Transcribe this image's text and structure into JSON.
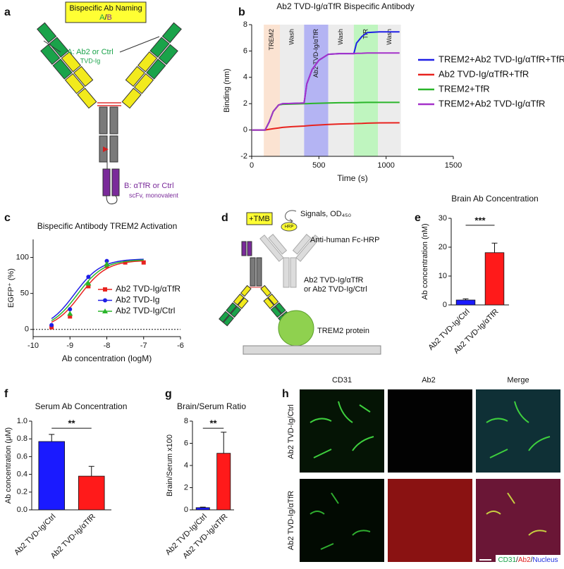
{
  "chart_data": [
    {
      "type": "line",
      "panel": "b",
      "title": "Ab2 TVD-Ig/αTfR Bispecific Antibody",
      "xlabel": "Time (s)",
      "ylabel": "Binding (nm)",
      "xlim": [
        0,
        1500
      ],
      "xticks": [
        0,
        500,
        1000,
        1500
      ],
      "ylim": [
        -2,
        8
      ],
      "yticks": [
        -2,
        0,
        2,
        4,
        6,
        8
      ],
      "phases": [
        {
          "label": "TREM2",
          "start": 90,
          "end": 210,
          "color": "#fbe3d2"
        },
        {
          "label": "Wash",
          "start": 210,
          "end": 390,
          "color": "#ececec"
        },
        {
          "label": "Ab2 TVD-Ig/αTfR",
          "start": 390,
          "end": 570,
          "color": "#b4b4f3"
        },
        {
          "label": "Wash",
          "start": 570,
          "end": 760,
          "color": "#ececec"
        },
        {
          "label": "TfR",
          "start": 760,
          "end": 940,
          "color": "#bff5bf"
        },
        {
          "label": "Wash",
          "start": 940,
          "end": 1110,
          "color": "#ececec"
        }
      ],
      "x": [
        0,
        100,
        130,
        160,
        200,
        230,
        300,
        390,
        410,
        450,
        500,
        570,
        650,
        760,
        780,
        820,
        860,
        950,
        1100
      ],
      "series": [
        {
          "name": "TREM2+Ab2 TVD-Ig/αTfR+TfR",
          "color": "#1f1fe6",
          "values": [
            0,
            0,
            0.6,
            1.4,
            1.9,
            2.0,
            2.02,
            2.05,
            3.5,
            4.6,
            5.3,
            5.75,
            5.8,
            5.8,
            6.6,
            7.1,
            7.4,
            7.45,
            7.45
          ]
        },
        {
          "name": "Ab2 TVD-Ig/αTfR+TfR",
          "color": "#e8231f",
          "values": [
            0,
            0,
            0.05,
            0.1,
            0.15,
            0.2,
            0.25,
            0.3,
            0.32,
            0.35,
            0.38,
            0.42,
            0.45,
            0.48,
            0.49,
            0.5,
            0.52,
            0.54,
            0.55
          ]
        },
        {
          "name": "TREM2+TfR",
          "color": "#2ab52a",
          "values": [
            0,
            0,
            0.6,
            1.4,
            1.9,
            1.95,
            1.97,
            2.0,
            2.0,
            2.02,
            2.03,
            2.05,
            2.07,
            2.08,
            2.08,
            2.09,
            2.1,
            2.1,
            2.1
          ]
        },
        {
          "name": "TREM2+Ab2 TVD-Ig/αTfR",
          "color": "#a532c9",
          "values": [
            0,
            0,
            0.6,
            1.4,
            1.9,
            2.0,
            2.02,
            2.05,
            3.5,
            4.6,
            5.3,
            5.75,
            5.8,
            5.8,
            5.82,
            5.83,
            5.85,
            5.85,
            5.85
          ]
        }
      ]
    },
    {
      "type": "scatter",
      "panel": "c",
      "title": "Bispecific Antibody TREM2 Activation",
      "xlabel": "Ab concentration (logM)",
      "ylabel": "EGFP⁺ (%)",
      "xlim": [
        -10,
        -6
      ],
      "xticks": [
        -10,
        -9,
        -8,
        -7,
        -6
      ],
      "ylim": [
        -10,
        125
      ],
      "yticks": [
        0,
        50,
        100
      ],
      "zero_line": true,
      "x": [
        -9.5,
        -9,
        -8.5,
        -8,
        -7.5,
        -7
      ],
      "series": [
        {
          "name": "Ab2 TVD-Ig/αTfR",
          "color": "#e8231f",
          "marker": "square",
          "values": [
            3,
            18,
            60,
            88,
            93,
            93
          ],
          "fit": {
            "bottom": 0,
            "top": 96,
            "log_ec50": -8.72,
            "hill": 1.2
          }
        },
        {
          "name": "Ab2 TVD-Ig",
          "color": "#1f1fe6",
          "marker": "circle",
          "values": [
            6,
            28,
            73,
            95,
            null,
            null
          ],
          "fit": {
            "bottom": 0,
            "top": 98,
            "log_ec50": -8.88,
            "hill": 1.2
          }
        },
        {
          "name": "Ab2 TVD-Ig/Ctrl",
          "color": "#2ab52a",
          "marker": "triangle",
          "values": [
            null,
            22,
            64,
            91,
            null,
            null
          ],
          "fit": {
            "bottom": 0,
            "top": 97,
            "log_ec50": -8.8,
            "hill": 1.2
          }
        }
      ]
    },
    {
      "type": "bar",
      "panel": "e",
      "title": "Brain Ab Concentration",
      "ylabel": "Ab concentration (nM)",
      "significance": "***",
      "categories": [
        "Ab2 TVD-Ig/Ctrl",
        "Ab2 TVD-Ig/αTfR"
      ],
      "values": [
        1.7,
        18.1
      ],
      "errors": [
        0.4,
        3.3
      ],
      "colors": [
        "#1a1aff",
        "#ff1a1a"
      ],
      "ylim": [
        0,
        30
      ],
      "yticks": [
        0,
        10,
        20,
        30
      ]
    },
    {
      "type": "bar",
      "panel": "f",
      "title": "Serum Ab Concentration",
      "ylabel": "Ab concentration (μM)",
      "significance": "**",
      "categories": [
        "Ab2 TVD-Ig/Ctrl",
        "Ab2 TVD-Ig/αTfR"
      ],
      "values": [
        0.77,
        0.38
      ],
      "errors": [
        0.08,
        0.11
      ],
      "colors": [
        "#1a1aff",
        "#ff1a1a"
      ],
      "ylim": [
        0,
        1
      ],
      "yticks": [
        {
          "value": 0,
          "label": "0.0"
        },
        0.2,
        0.4,
        0.6,
        0.8,
        {
          "value": 1,
          "label": "1.0"
        }
      ]
    },
    {
      "type": "bar",
      "panel": "g",
      "title": "Brain/Serum Ratio",
      "ylabel": "Brain/Serum x100",
      "significance": "**",
      "categories": [
        "Ab2 TVD-Ig/Ctrl",
        "Ab2 TVD-Ig/αTfR"
      ],
      "values": [
        0.2,
        5.1
      ],
      "errors": [
        0.05,
        1.9
      ],
      "colors": [
        "#1a1aff",
        "#ff1a1a"
      ],
      "ylim": [
        0,
        8
      ],
      "yticks": [
        0,
        2,
        4,
        6,
        8
      ]
    }
  ],
  "diagram_a": {
    "panel": "a",
    "naming_title": "Bispecific Ab Naming",
    "naming_a": "A",
    "naming_slash": "/",
    "naming_b": "B",
    "arm_label": "A: Ab2 or Ctrl",
    "arm_sublabel": "TVD-Ig",
    "tail_label": "B: αTfR or Ctrl",
    "tail_sublabel": "scFv, monovalent"
  },
  "diagram_d": {
    "panel": "d",
    "substrate": "+TMB",
    "signal": "Signals, OD₄₅₀",
    "enzyme": "HRP",
    "secondary": "Anti-human Fc-HRP",
    "primary_line1": "Ab2 TVD-Ig/αTfR",
    "primary_line2": "or Ab2 TVD-Ig/Ctrl",
    "target": "TREM2 protein"
  },
  "micrographs_h": {
    "panel": "h",
    "columns": [
      "CD31",
      "Ab2",
      "Merge"
    ],
    "rows": [
      "Ab2 TVD-Ig/Ctrl",
      "Ab2 TVD-Ig/αTfR"
    ],
    "legend": [
      "CD31",
      "/",
      "Ab2",
      "/",
      "Nucleus"
    ]
  }
}
